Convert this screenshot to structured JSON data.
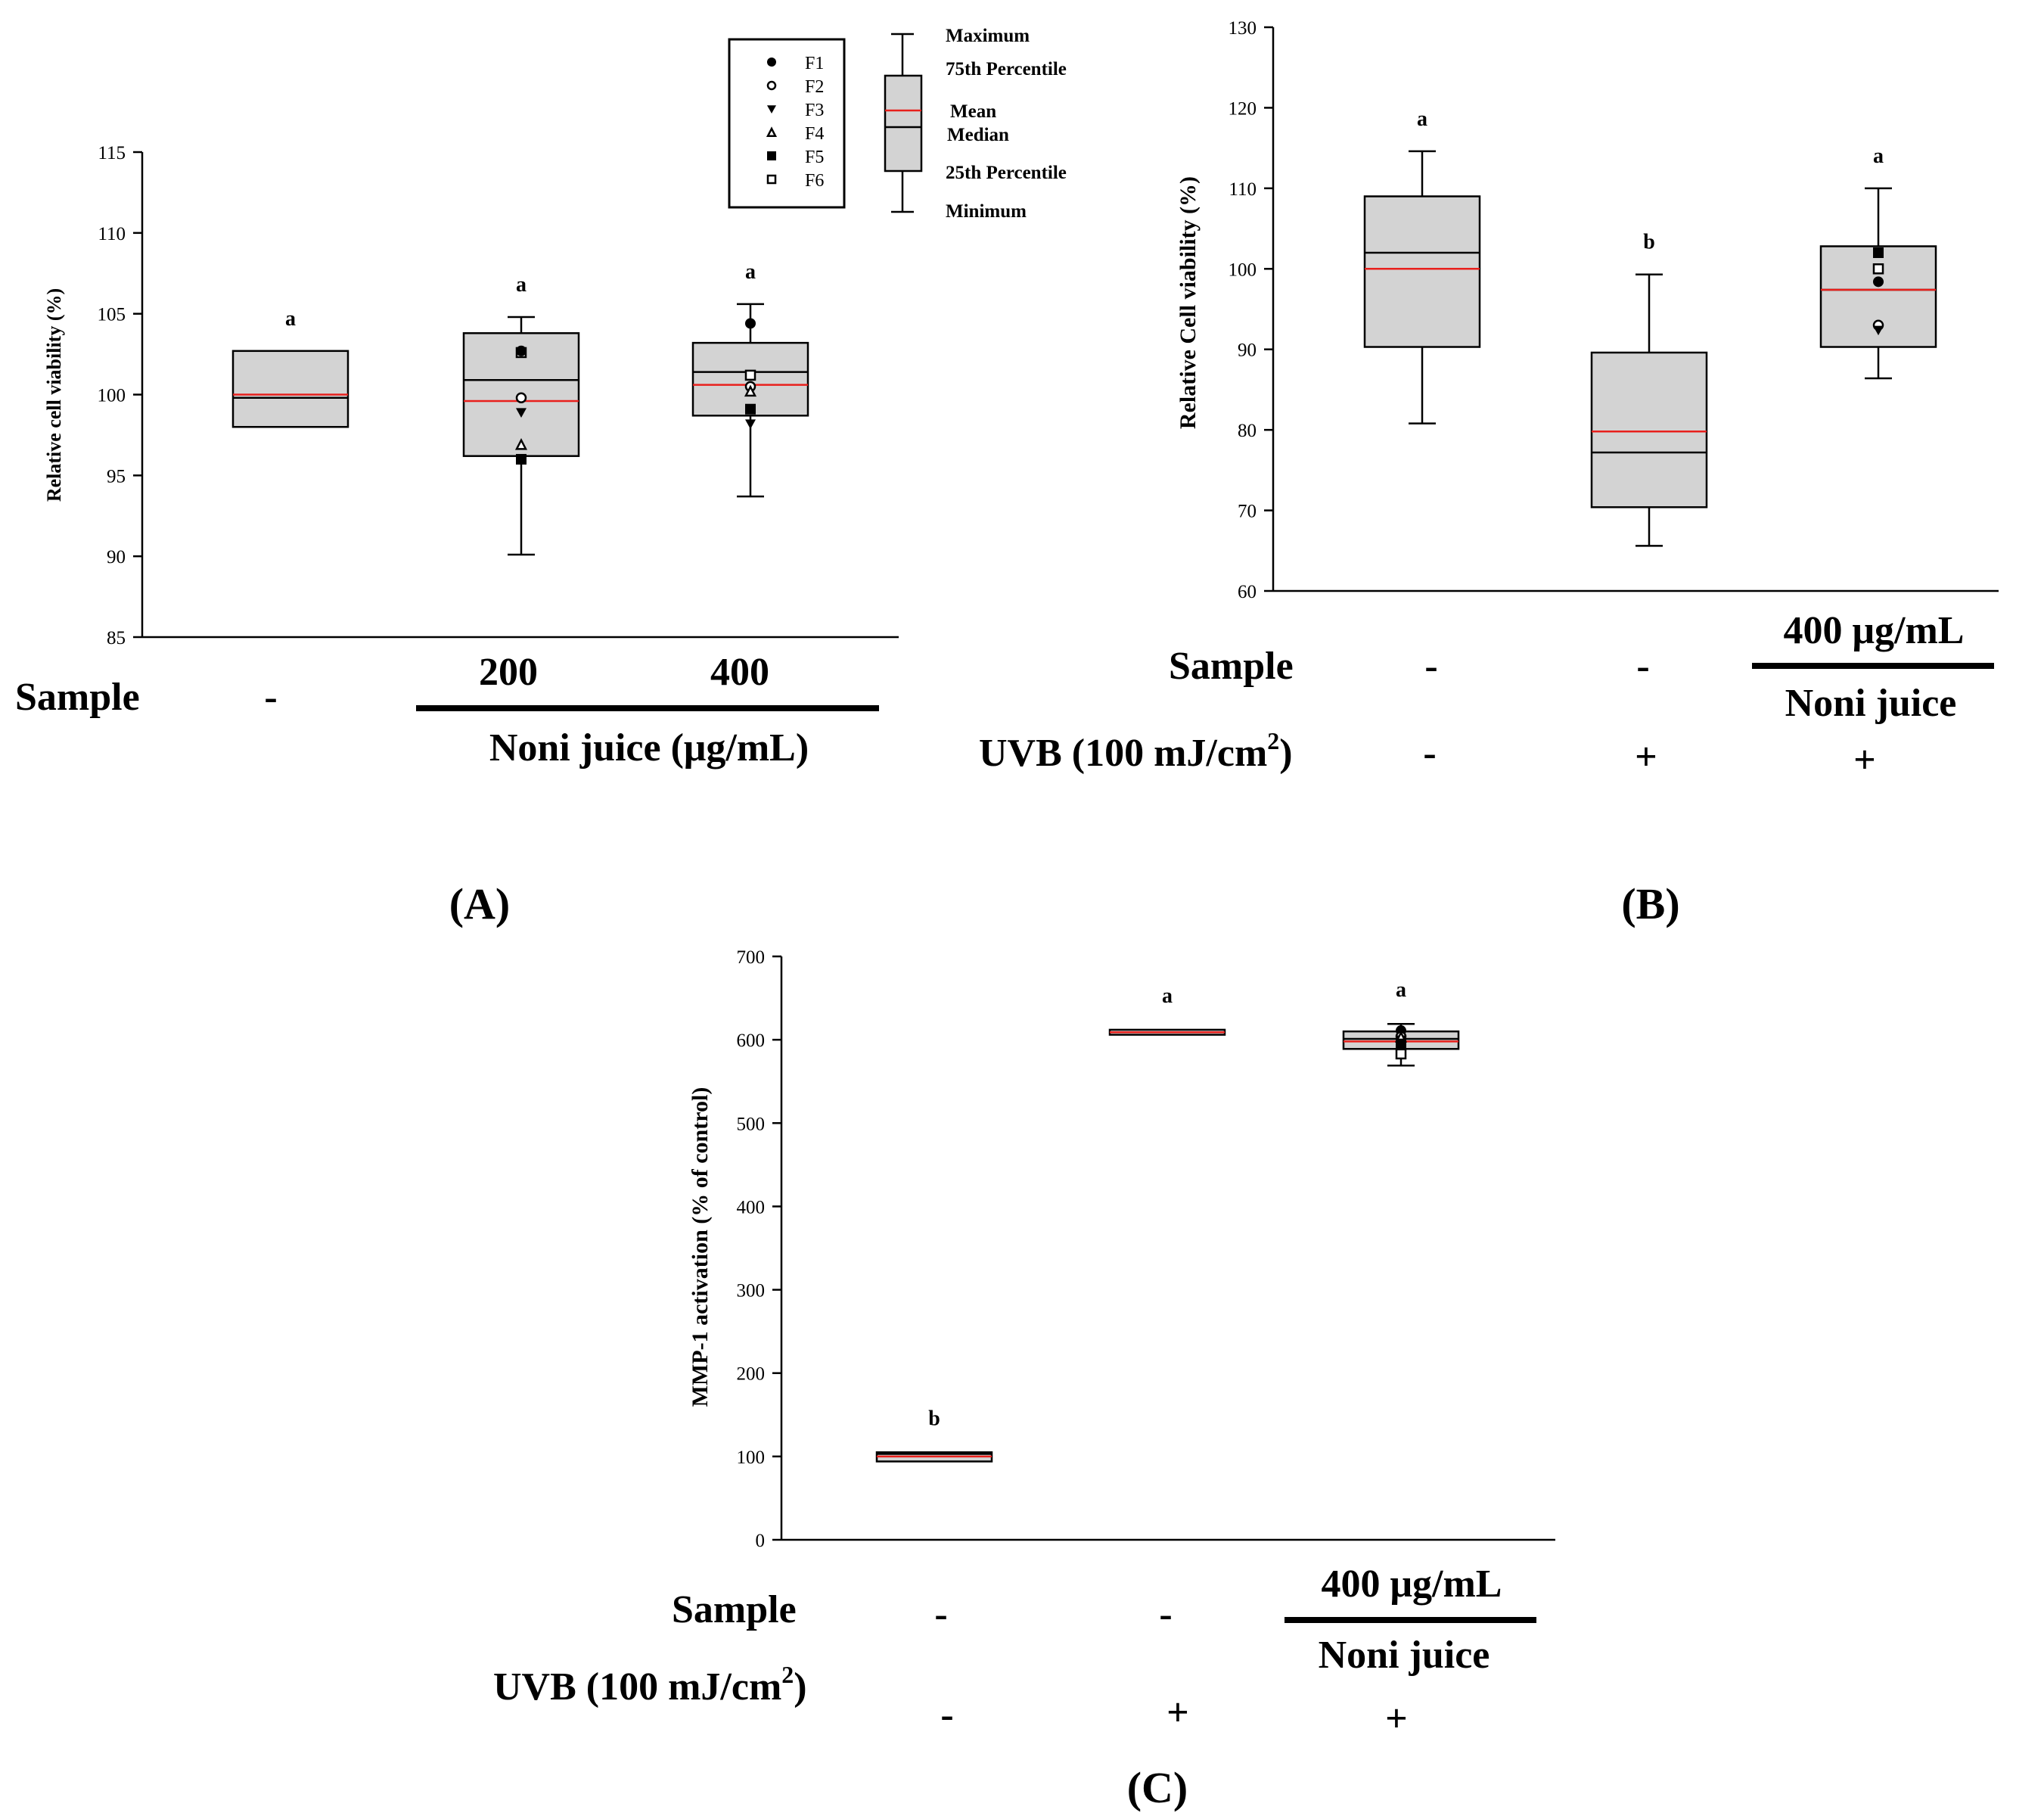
{
  "colors": {
    "box_fill": "#d3d3d3",
    "axis": "#000000",
    "mean_line": "#e8201c",
    "median_line": "#000000",
    "background": "#ffffff"
  },
  "legend_key": {
    "markers": [
      {
        "label": "F1",
        "symbol": "circle-filled"
      },
      {
        "label": "F2",
        "symbol": "circle-open"
      },
      {
        "label": "F3",
        "symbol": "triangle-down-filled"
      },
      {
        "label": "F4",
        "symbol": "triangle-up-open"
      },
      {
        "label": "F5",
        "symbol": "square-filled"
      },
      {
        "label": "F6",
        "symbol": "square-open"
      }
    ],
    "box_labels": {
      "maximum": "Maximum",
      "p75": "75th Percentile",
      "mean": "Mean",
      "median": "Median",
      "p25": "25th Percentile",
      "minimum": "Minimum"
    }
  },
  "chart_data": [
    {
      "panel": "(A)",
      "type": "box",
      "ylabel": "Relative cell viability (%)",
      "ylim": [
        85,
        115
      ],
      "yticks": [
        85,
        90,
        95,
        100,
        105,
        110,
        115
      ],
      "row_labels": {
        "sample": "Sample"
      },
      "condition_labels": {
        "sample": [
          "-",
          "200",
          "400"
        ]
      },
      "group_label": "Noni  juice (μg/mL)",
      "series": [
        {
          "name": "control",
          "min": 98.0,
          "q1": 98.0,
          "median": 99.8,
          "mean": 100.0,
          "q3": 102.7,
          "max": 102.7,
          "letter": "a",
          "points": []
        },
        {
          "name": "200",
          "min": 90.1,
          "q1": 96.2,
          "median": 100.9,
          "mean": 99.6,
          "q3": 103.8,
          "max": 104.8,
          "letter": "a",
          "points": [
            {
              "label": "F2",
              "value": 99.8
            },
            {
              "label": "F3",
              "value": 98.9
            },
            {
              "label": "F4",
              "value": 96.9
            },
            {
              "label": "F5",
              "value": 96.0
            },
            {
              "label": "F6",
              "value": 102.6
            },
            {
              "label": "F1",
              "value": 102.7
            }
          ]
        },
        {
          "name": "400",
          "min": 93.7,
          "q1": 98.7,
          "median": 101.4,
          "mean": 100.6,
          "q3": 103.2,
          "max": 105.6,
          "letter": "a",
          "points": [
            {
              "label": "F1",
              "value": 104.4
            },
            {
              "label": "F6",
              "value": 101.2
            },
            {
              "label": "F2",
              "value": 100.5
            },
            {
              "label": "F4",
              "value": 100.2
            },
            {
              "label": "F5",
              "value": 99.1
            },
            {
              "label": "F3",
              "value": 98.2
            }
          ]
        }
      ]
    },
    {
      "panel": "(B)",
      "type": "box",
      "ylabel": "Relative Cell viability (%)",
      "ylim": [
        60,
        130
      ],
      "yticks": [
        60,
        70,
        80,
        90,
        100,
        110,
        120,
        130
      ],
      "row_labels": {
        "sample": "Sample",
        "uvb": "UVB  (100  mJ/cm",
        "uvb_sup": "2",
        "uvb_close": ")"
      },
      "condition_labels": {
        "sample": [
          "-",
          "-"
        ],
        "uvb": [
          "-",
          "+",
          "+"
        ]
      },
      "group_label": {
        "dose": "400  μg/mL",
        "name": "Noni  juice"
      },
      "series": [
        {
          "name": "control",
          "min": 80.8,
          "q1": 90.3,
          "median": 102.0,
          "mean": 100.0,
          "q3": 109.0,
          "max": 114.6,
          "letter": "a",
          "points": []
        },
        {
          "name": "UVB",
          "min": 65.6,
          "q1": 70.4,
          "median": 77.2,
          "mean": 79.8,
          "q3": 89.6,
          "max": 99.3,
          "letter": "b",
          "points": []
        },
        {
          "name": "UVB + 400",
          "min": 86.4,
          "q1": 90.3,
          "median": 97.4,
          "mean": 97.4,
          "q3": 102.8,
          "max": 110.0,
          "letter": "a",
          "points": [
            {
              "label": "F5",
              "value": 102.0
            },
            {
              "label": "F6",
              "value": 100.0
            },
            {
              "label": "F1",
              "value": 98.4
            },
            {
              "label": "F2",
              "value": 93.0
            },
            {
              "label": "F3",
              "value": 92.4
            }
          ]
        }
      ]
    },
    {
      "panel": "(C)",
      "type": "box",
      "ylabel": "MMP-1 activation (% of control)",
      "ylim": [
        0,
        700
      ],
      "yticks": [
        0,
        100,
        200,
        300,
        400,
        500,
        600,
        700
      ],
      "row_labels": {
        "sample": "Sample",
        "uvb": "UVB  (100  mJ/cm",
        "uvb_sup": "2",
        "uvb_close": ")"
      },
      "condition_labels": {
        "sample": [
          "-",
          "-"
        ],
        "uvb": [
          "-",
          "+",
          "+"
        ]
      },
      "group_label": {
        "dose": "400  μg/mL",
        "name": "Noni  juice"
      },
      "series": [
        {
          "name": "control",
          "min": 94,
          "q1": 94,
          "median": 103,
          "mean": 100,
          "q3": 105,
          "max": 105,
          "letter": "b",
          "points": []
        },
        {
          "name": "UVB",
          "min": 606,
          "q1": 606,
          "median": 609,
          "mean": 609,
          "q3": 612,
          "max": 612,
          "letter": "a",
          "points": []
        },
        {
          "name": "UVB + 400",
          "min": 569,
          "q1": 589,
          "median": 601,
          "mean": 598,
          "q3": 610,
          "max": 619,
          "letter": "a",
          "points": [
            {
              "label": "F1",
              "value": 611
            },
            {
              "label": "F2",
              "value": 604
            },
            {
              "label": "F3",
              "value": 600
            },
            {
              "label": "F4",
              "value": 603
            },
            {
              "label": "F5",
              "value": 595
            },
            {
              "label": "F6",
              "value": 583
            }
          ]
        }
      ]
    }
  ]
}
